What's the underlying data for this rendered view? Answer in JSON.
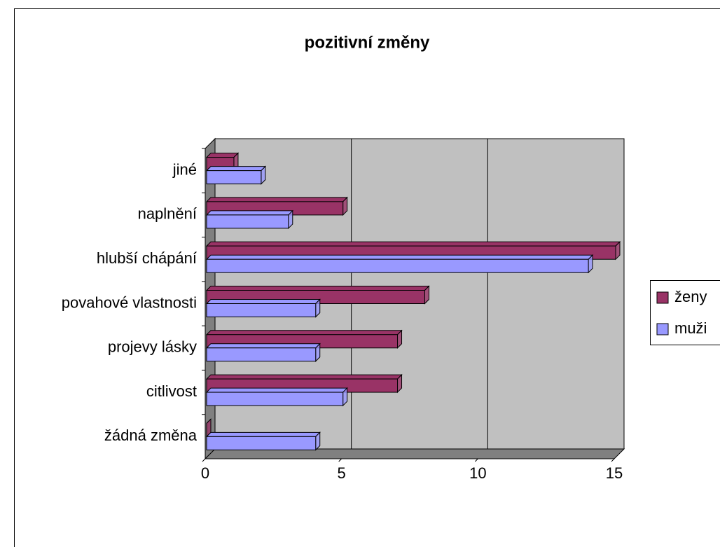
{
  "chart_data": {
    "type": "bar",
    "orientation": "horizontal",
    "title": "pozitivní změny",
    "categories": [
      "žádná změna",
      "citlivost",
      "projevy lásky",
      "povahové vlastnosti",
      "hlubší chápání",
      "naplnění",
      "jiné"
    ],
    "series": [
      {
        "name": "ženy",
        "color": "#993366",
        "values": [
          0,
          7,
          7,
          8,
          15,
          5,
          1
        ]
      },
      {
        "name": "muži",
        "color": "#9999ff",
        "values": [
          4,
          5,
          4,
          4,
          14,
          3,
          2
        ]
      }
    ],
    "xlim": [
      0,
      15
    ],
    "xticks": [
      0,
      5,
      10,
      15
    ],
    "grid": true,
    "legend": "right"
  }
}
